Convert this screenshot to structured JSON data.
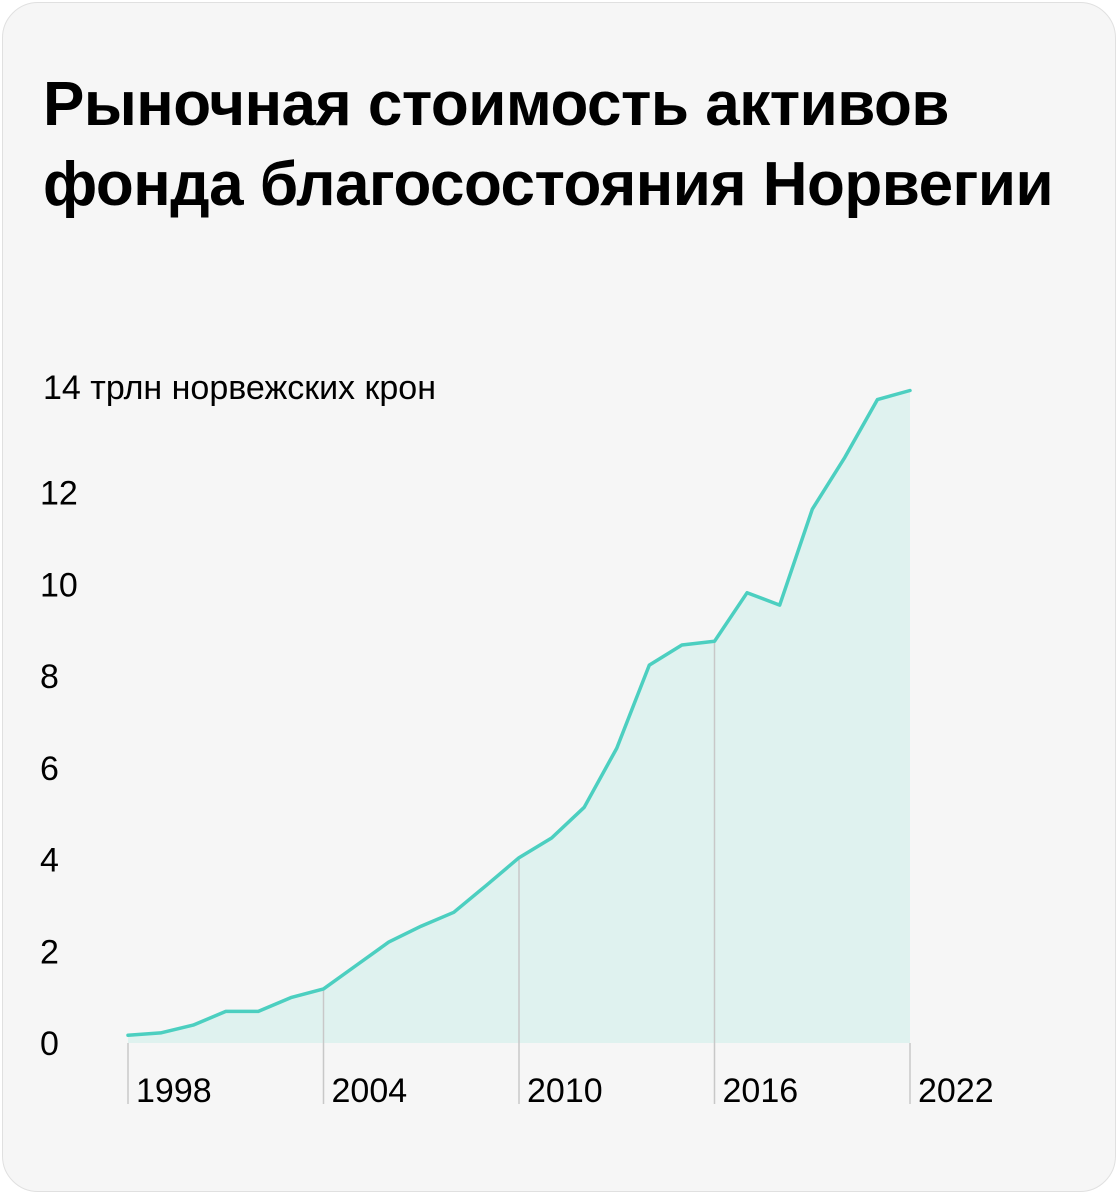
{
  "title": "Рыночная стоимость активов фонда благосостояния Норвегии",
  "unit_label": "14 трлн норвежских крон",
  "chart_data": {
    "type": "area",
    "title": "Рыночная стоимость активов фонда благосостояния Норвегии",
    "ylabel": "14 трлн норвежских крон",
    "xlabel": "",
    "ylim": [
      0,
      14
    ],
    "xlim": [
      1998,
      2022
    ],
    "y_ticks": [
      "0",
      "2",
      "4",
      "6",
      "8",
      "10",
      "12"
    ],
    "y_tick_values": [
      0,
      2,
      4,
      6,
      8,
      10,
      12
    ],
    "x_ticks": [
      "1998",
      "2004",
      "2010",
      "2016",
      "2022"
    ],
    "x_tick_values": [
      1998,
      2004,
      2010,
      2016,
      2022
    ],
    "grid": "vertical lines at 2004, 2010, 2016",
    "legend": "none",
    "series": [
      {
        "x": [
          1998,
          1999,
          2000,
          2001,
          2002,
          2003,
          2004,
          2005,
          2006,
          2007,
          2008,
          2009,
          2010,
          2011,
          2012,
          2013,
          2014,
          2015,
          2016,
          2017,
          2018,
          2019,
          2020,
          2021,
          2022
        ],
        "values": [
          0.17,
          0.22,
          0.39,
          0.69,
          0.69,
          0.99,
          1.18,
          1.69,
          2.2,
          2.55,
          2.85,
          3.44,
          4.04,
          4.47,
          5.14,
          6.43,
          8.24,
          8.68,
          8.76,
          9.82,
          9.55,
          11.64,
          12.77,
          14.03,
          14.23
        ]
      }
    ],
    "colors": {
      "line": "#4ccfc0",
      "fill": "#dff2ef",
      "grid": "#c8c8c8",
      "text": "#000000"
    }
  }
}
